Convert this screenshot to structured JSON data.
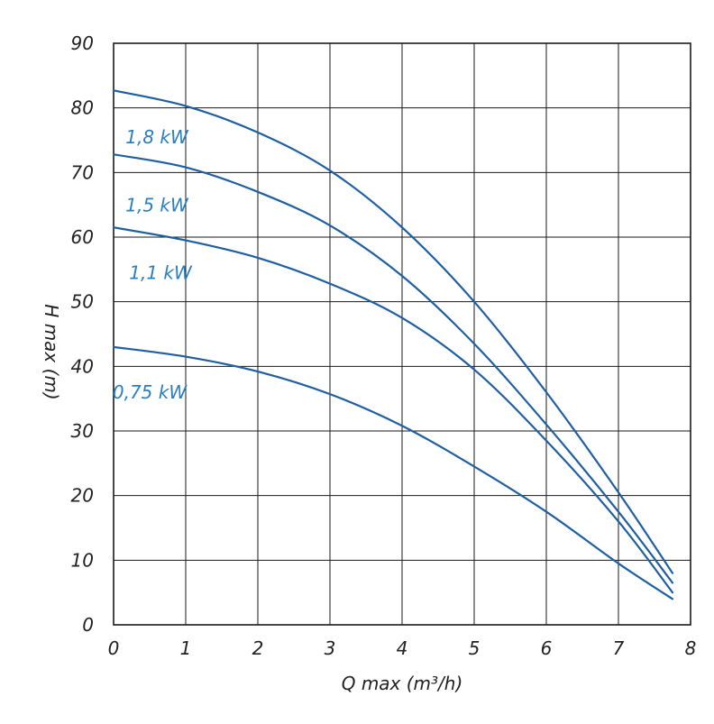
{
  "chart_data": {
    "type": "line",
    "title": "",
    "xlabel": "Q max (m³/h)",
    "ylabel": "H max (m)",
    "xlim": [
      0,
      8
    ],
    "ylim": [
      0,
      90
    ],
    "x_ticks": [
      "0",
      "1",
      "2",
      "3",
      "4",
      "5",
      "6",
      "7",
      "8"
    ],
    "y_ticks": [
      "0",
      "10",
      "20",
      "30",
      "40",
      "50",
      "60",
      "70",
      "80",
      "90"
    ],
    "grid": true,
    "line_color": "#1f5fa0",
    "label_color": "#2a7fc0",
    "series": [
      {
        "name": "1,8 kW",
        "x": [
          0,
          1,
          2,
          3,
          4,
          5,
          6,
          7,
          7.75
        ],
        "y": [
          82.7,
          80.3,
          76.2,
          70.3,
          61.5,
          50.0,
          36.0,
          20.5,
          8.0
        ]
      },
      {
        "name": "1,5 kW",
        "x": [
          0,
          1,
          2,
          3,
          4,
          5,
          6,
          7,
          7.75
        ],
        "y": [
          72.8,
          70.8,
          67.0,
          61.8,
          54.0,
          43.5,
          31.0,
          17.5,
          6.5
        ]
      },
      {
        "name": "1,1 kW",
        "x": [
          0,
          1,
          2,
          3,
          4,
          5,
          6,
          7,
          7.75
        ],
        "y": [
          61.5,
          59.5,
          56.8,
          52.8,
          47.5,
          39.5,
          28.5,
          16.0,
          5.0
        ]
      },
      {
        "name": "0,75 kW",
        "x": [
          0,
          1,
          2,
          3,
          4,
          5,
          6,
          7,
          7.75
        ],
        "y": [
          43.0,
          41.5,
          39.2,
          35.7,
          30.8,
          24.5,
          17.5,
          9.5,
          4.0
        ]
      }
    ],
    "annotations": [
      {
        "text": "1,8 kW",
        "x": 0.6,
        "y": 74.5
      },
      {
        "text": "1,5 kW",
        "x": 0.6,
        "y": 64.0
      },
      {
        "text": "1,1 kW",
        "x": 0.65,
        "y": 53.5
      },
      {
        "text": "0,75 kW",
        "x": 0.5,
        "y": 35.0
      }
    ]
  }
}
